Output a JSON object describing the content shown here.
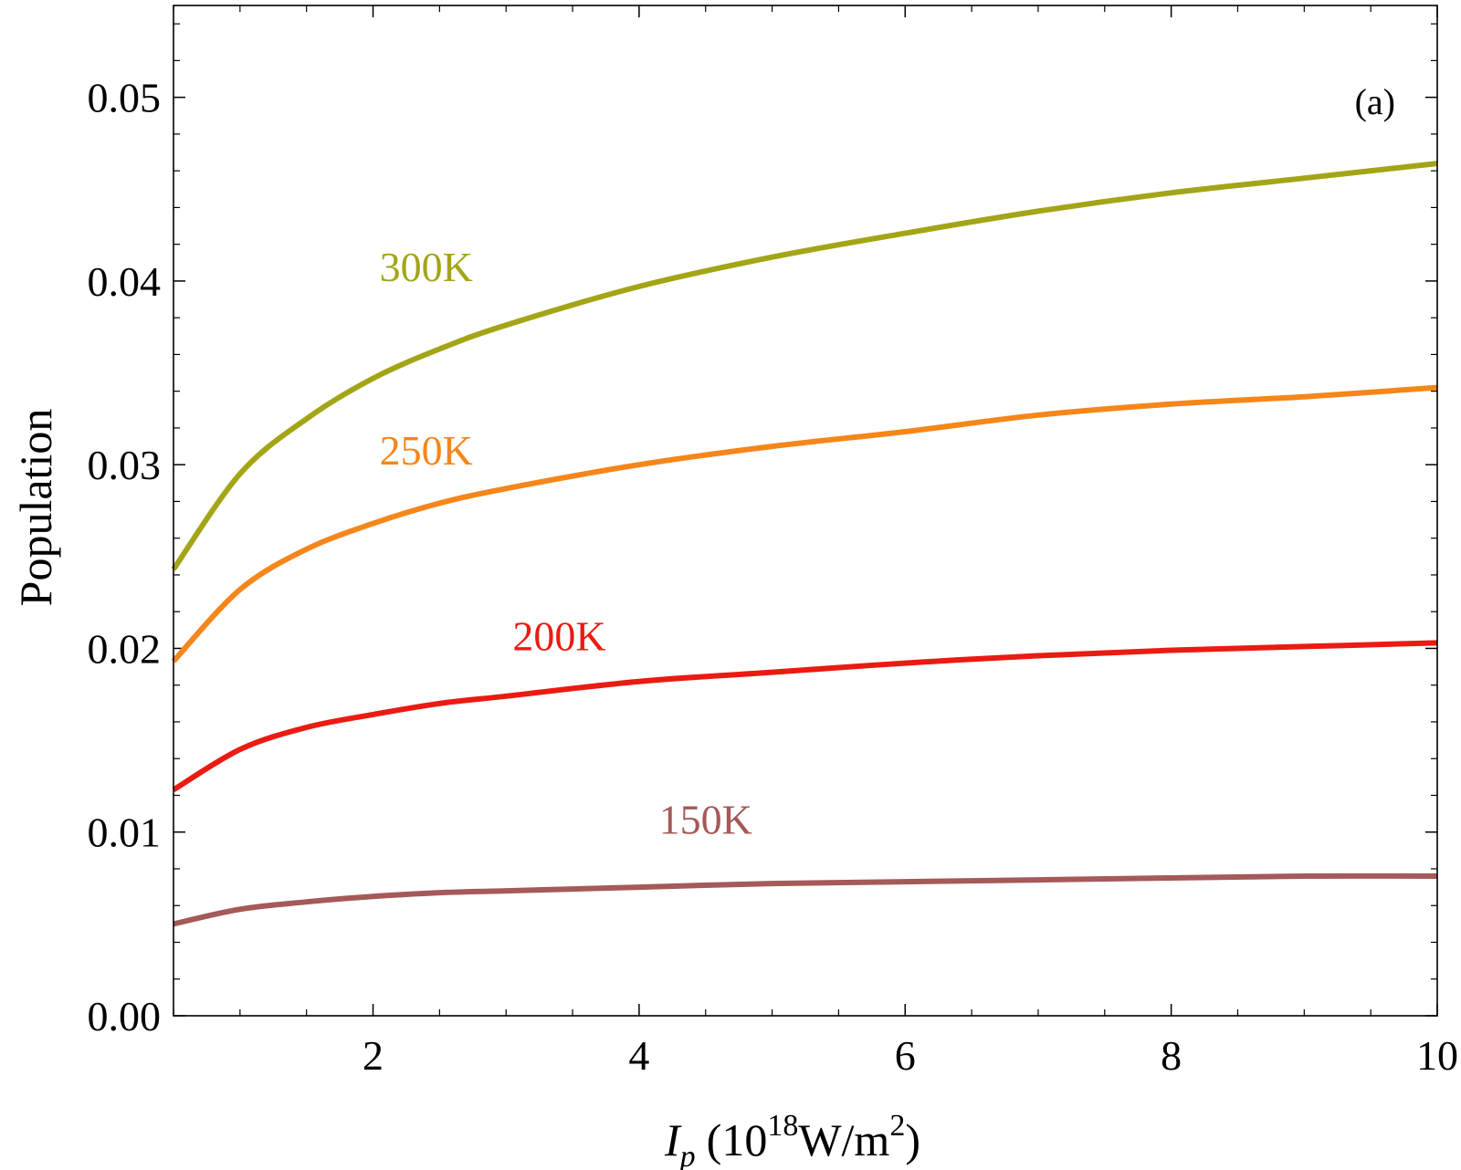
{
  "chart_data": {
    "type": "line",
    "panel_label": "(a)",
    "xlabel": {
      "symbol": "I",
      "subscript": "p",
      "prefix": "(10",
      "exponent": "18",
      "unit": "W/m",
      "unit_exponent": "2",
      "suffix": ")"
    },
    "ylabel": "Population",
    "xlim": [
      0.5,
      10
    ],
    "ylim": [
      0,
      0.055
    ],
    "x_major_ticks": [
      2,
      4,
      6,
      8,
      10
    ],
    "x_tick_labels": [
      "2",
      "4",
      "6",
      "8",
      "10"
    ],
    "x_minor_step": 0.5,
    "y_major_ticks": [
      0,
      0.01,
      0.02,
      0.03,
      0.04,
      0.05
    ],
    "y_tick_labels": [
      "0.00",
      "0.01",
      "0.02",
      "0.03",
      "0.04",
      "0.05"
    ],
    "y_minor_step": 0.002,
    "grid": false,
    "series": [
      {
        "name": "300K",
        "color": "#a3a517",
        "label_at": [
          2.4,
          0.04
        ],
        "x": [
          0.5,
          1,
          1.5,
          2,
          2.5,
          3,
          4,
          5,
          6,
          7,
          8,
          9,
          10
        ],
        "y": [
          0.0243,
          0.0295,
          0.0325,
          0.0347,
          0.0363,
          0.0376,
          0.0397,
          0.0413,
          0.0426,
          0.0438,
          0.0448,
          0.0456,
          0.0464
        ]
      },
      {
        "name": "250K",
        "color": "#f5861a",
        "label_at": [
          2.4,
          0.03
        ],
        "x": [
          0.5,
          1,
          1.5,
          2,
          2.5,
          3,
          4,
          5,
          6,
          7,
          8,
          9,
          10
        ],
        "y": [
          0.0193,
          0.0232,
          0.0254,
          0.0268,
          0.0279,
          0.0287,
          0.03,
          0.031,
          0.0318,
          0.0327,
          0.0333,
          0.0337,
          0.0342
        ]
      },
      {
        "name": "200K",
        "color": "#ea1b12",
        "label_at": [
          3.4,
          0.0199
        ],
        "x": [
          0.5,
          1,
          1.5,
          2,
          2.5,
          3,
          4,
          5,
          6,
          7,
          8,
          9,
          10
        ],
        "y": [
          0.0123,
          0.0145,
          0.0157,
          0.0164,
          0.017,
          0.0174,
          0.0182,
          0.0187,
          0.0192,
          0.0196,
          0.0199,
          0.0201,
          0.0203
        ]
      },
      {
        "name": "150K",
        "color": "#a55959",
        "label_at": [
          4.5,
          0.0099
        ],
        "x": [
          0.5,
          1,
          1.5,
          2,
          2.5,
          3,
          4,
          5,
          6,
          7,
          8,
          9,
          10
        ],
        "y": [
          0.005,
          0.0058,
          0.0062,
          0.0065,
          0.0067,
          0.0068,
          0.007,
          0.0072,
          0.0073,
          0.0074,
          0.0075,
          0.0076,
          0.0076
        ]
      }
    ]
  }
}
